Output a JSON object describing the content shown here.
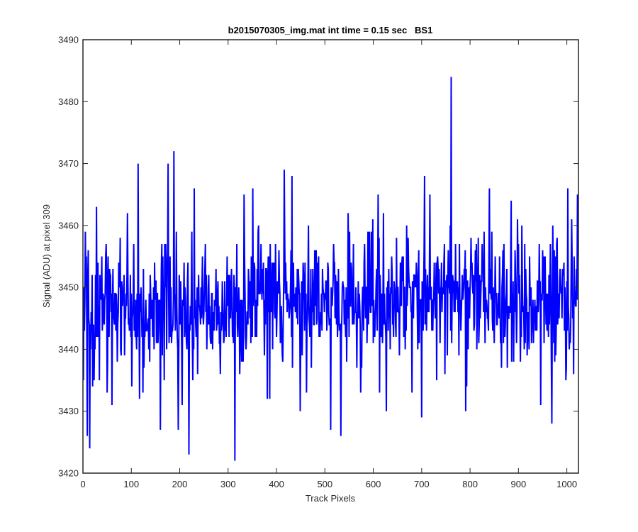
{
  "chart_data": {
    "type": "line",
    "title": "b2015070305_img.mat int time = 0.15 sec   BS1",
    "xlabel": "Track Pixels",
    "ylabel": "Signal (ADU) at pixel 309",
    "xlim": [
      0,
      1024
    ],
    "ylim": [
      3420,
      3490
    ],
    "xticks": [
      0,
      100,
      200,
      300,
      400,
      500,
      600,
      700,
      800,
      900,
      1000
    ],
    "yticks": [
      3420,
      3430,
      3440,
      3450,
      3460,
      3470,
      3480,
      3490
    ],
    "xtick_labels": [
      "0",
      "100",
      "200",
      "300",
      "400",
      "500",
      "600",
      "700",
      "800",
      "900",
      "1000"
    ],
    "ytick_labels": [
      "3420",
      "3430",
      "3440",
      "3450",
      "3460",
      "3470",
      "3480",
      "3490"
    ],
    "grid": false,
    "legend": "none",
    "series": [
      {
        "color": "#0000ff",
        "x_start": 1,
        "x_step": 1,
        "count": 1024,
        "base_mean": 3446,
        "noise_amplitude": 5,
        "anchors": [
          [
            1,
            3435
          ],
          [
            5,
            3459
          ],
          [
            9,
            3426
          ],
          [
            14,
            3424
          ],
          [
            20,
            3434
          ],
          [
            28,
            3463
          ],
          [
            60,
            3431
          ],
          [
            77,
            3458
          ],
          [
            92,
            3462
          ],
          [
            114,
            3470
          ],
          [
            117,
            3432
          ],
          [
            160,
            3427
          ],
          [
            176,
            3470
          ],
          [
            188,
            3472
          ],
          [
            197,
            3427
          ],
          [
            205,
            3431
          ],
          [
            219,
            3423
          ],
          [
            225,
            3459
          ],
          [
            230,
            3466
          ],
          [
            314,
            3422
          ],
          [
            333,
            3465
          ],
          [
            351,
            3466
          ],
          [
            381,
            3432
          ],
          [
            416,
            3469
          ],
          [
            432,
            3468
          ],
          [
            449,
            3430
          ],
          [
            512,
            3427
          ],
          [
            533,
            3426
          ],
          [
            548,
            3462
          ],
          [
            613,
            3433
          ],
          [
            627,
            3430
          ],
          [
            680,
            3433
          ],
          [
            700,
            3429
          ],
          [
            706,
            3468
          ],
          [
            738,
            3441
          ],
          [
            761,
            3484
          ],
          [
            791,
            3430
          ],
          [
            840,
            3466
          ],
          [
            885,
            3464
          ],
          [
            946,
            3431
          ],
          [
            969,
            3428
          ],
          [
            1002,
            3466
          ],
          [
            1014,
            3436
          ],
          [
            1022,
            3465
          ]
        ]
      }
    ]
  }
}
